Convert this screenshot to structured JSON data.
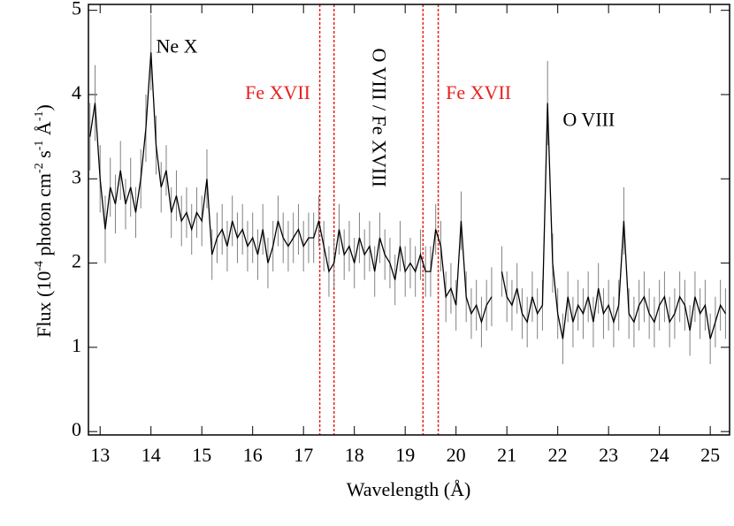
{
  "chart_data": {
    "type": "line",
    "xlabel": "Wavelength (Å)",
    "ylabel": [
      "Flux (10",
      "-4",
      " photon cm",
      "-2",
      " s",
      "-1",
      " Å",
      "-1",
      ")"
    ],
    "xlim": [
      12.77,
      25.38
    ],
    "ylim": [
      -0.04,
      5.07
    ],
    "xticks": [
      13,
      14,
      15,
      16,
      17,
      18,
      19,
      20,
      21,
      22,
      23,
      24,
      25
    ],
    "yticks": [
      0,
      1,
      2,
      3,
      4,
      5
    ],
    "color": "#000000",
    "error_color": "#808080",
    "x": [
      12.8,
      12.9,
      13.0,
      13.1,
      13.2,
      13.3,
      13.4,
      13.5,
      13.6,
      13.7,
      13.8,
      13.9,
      14.0,
      14.1,
      14.2,
      14.3,
      14.4,
      14.5,
      14.6,
      14.7,
      14.8,
      14.9,
      15.0,
      15.1,
      15.2,
      15.3,
      15.4,
      15.5,
      15.6,
      15.7,
      15.8,
      15.9,
      16.0,
      16.1,
      16.2,
      16.3,
      16.4,
      16.5,
      16.6,
      16.7,
      16.8,
      16.9,
      17.0,
      17.1,
      17.2,
      17.3,
      17.4,
      17.5,
      17.6,
      17.7,
      17.8,
      17.9,
      18.0,
      18.1,
      18.2,
      18.3,
      18.4,
      18.5,
      18.6,
      18.7,
      18.8,
      18.9,
      19.0,
      19.1,
      19.2,
      19.3,
      19.4,
      19.5,
      19.6,
      19.7,
      19.8,
      19.9,
      20.0,
      20.1,
      20.2,
      20.3,
      20.4,
      20.5,
      20.6,
      20.7,
      20.8,
      20.9,
      21.0,
      21.1,
      21.2,
      21.3,
      21.4,
      21.5,
      21.6,
      21.7,
      21.8,
      21.9,
      22.0,
      22.1,
      22.2,
      22.3,
      22.4,
      22.5,
      22.6,
      22.7,
      22.8,
      22.9,
      23.0,
      23.1,
      23.2,
      23.3,
      23.4,
      23.5,
      23.6,
      23.7,
      23.8,
      23.9,
      24.0,
      24.1,
      24.2,
      24.3,
      24.4,
      24.5,
      24.6,
      24.7,
      24.8,
      24.9,
      25.0,
      25.1,
      25.2,
      25.3
    ],
    "values": [
      3.5,
      3.9,
      3.0,
      2.4,
      2.9,
      2.7,
      3.1,
      2.7,
      2.9,
      2.6,
      3.0,
      3.6,
      4.5,
      3.4,
      2.9,
      3.1,
      2.6,
      2.8,
      2.5,
      2.6,
      2.4,
      2.6,
      2.5,
      3.0,
      2.1,
      2.3,
      2.4,
      2.2,
      2.5,
      2.3,
      2.4,
      2.2,
      2.3,
      2.1,
      2.4,
      2.0,
      2.2,
      2.5,
      2.3,
      2.2,
      2.3,
      2.4,
      2.2,
      2.3,
      2.3,
      2.5,
      2.2,
      1.9,
      2.0,
      2.4,
      2.1,
      2.2,
      2.0,
      2.3,
      2.1,
      2.2,
      1.9,
      2.3,
      2.1,
      2.0,
      1.8,
      2.2,
      1.9,
      2.0,
      1.9,
      2.1,
      1.9,
      1.9,
      2.4,
      2.2,
      1.6,
      1.7,
      1.5,
      2.5,
      1.6,
      1.4,
      1.5,
      1.3,
      1.5,
      1.6,
      null,
      1.9,
      1.6,
      1.5,
      1.7,
      1.4,
      1.3,
      1.6,
      1.4,
      1.5,
      3.9,
      2.0,
      1.4,
      1.1,
      1.6,
      1.3,
      1.5,
      1.4,
      1.6,
      1.3,
      1.7,
      1.4,
      1.5,
      1.3,
      1.5,
      2.5,
      1.4,
      1.3,
      1.5,
      1.6,
      1.4,
      1.3,
      1.5,
      1.6,
      1.3,
      1.4,
      1.6,
      1.5,
      1.2,
      1.6,
      1.4,
      1.5,
      1.1,
      1.3,
      1.5,
      1.4
    ],
    "errors": [
      0.4,
      0.45,
      0.4,
      0.4,
      0.35,
      0.35,
      0.35,
      0.3,
      0.35,
      0.3,
      0.35,
      0.4,
      0.45,
      0.35,
      0.3,
      0.3,
      0.3,
      0.3,
      0.3,
      0.3,
      0.3,
      0.3,
      0.3,
      0.35,
      0.3,
      0.3,
      0.3,
      0.3,
      0.3,
      0.3,
      0.3,
      0.3,
      0.3,
      0.3,
      0.3,
      0.3,
      0.3,
      0.3,
      0.3,
      0.3,
      0.3,
      0.3,
      0.3,
      0.3,
      0.3,
      0.3,
      0.3,
      0.3,
      0.3,
      0.3,
      0.3,
      0.3,
      0.3,
      0.3,
      0.3,
      0.3,
      0.3,
      0.3,
      0.3,
      0.3,
      0.3,
      0.3,
      0.3,
      0.3,
      0.3,
      0.3,
      0.3,
      0.3,
      0.3,
      0.3,
      0.3,
      0.3,
      0.3,
      0.35,
      0.3,
      0.3,
      0.3,
      0.3,
      0.3,
      0.35,
      null,
      0.3,
      0.3,
      0.3,
      0.3,
      0.3,
      0.3,
      0.3,
      0.3,
      0.3,
      0.5,
      0.35,
      0.3,
      0.3,
      0.3,
      0.3,
      0.3,
      0.3,
      0.3,
      0.3,
      0.3,
      0.3,
      0.3,
      0.3,
      0.3,
      0.4,
      0.3,
      0.3,
      0.3,
      0.3,
      0.3,
      0.3,
      0.3,
      0.3,
      0.3,
      0.3,
      0.3,
      0.3,
      0.3,
      0.3,
      0.3,
      0.3,
      0.3,
      0.3,
      0.3,
      0.3
    ],
    "vlines": [
      17.32,
      17.6,
      19.35,
      19.65
    ],
    "vline_color": "#e8211f",
    "annotations": [
      {
        "text": "Ne X",
        "x": 14.1,
        "y": 4.55,
        "color": "#000000"
      },
      {
        "text": "Fe XVII",
        "x": 15.85,
        "y": 4.0,
        "color": "#e8211f"
      },
      {
        "text": "O VIII / Fe XVIII",
        "x": 18.45,
        "y": 4.55,
        "color": "#000000",
        "orientation": "vertical"
      },
      {
        "text": "Fe XVII",
        "x": 19.8,
        "y": 4.0,
        "color": "#e8211f"
      },
      {
        "text": "O VIII",
        "x": 22.1,
        "y": 3.68,
        "color": "#000000"
      }
    ]
  }
}
